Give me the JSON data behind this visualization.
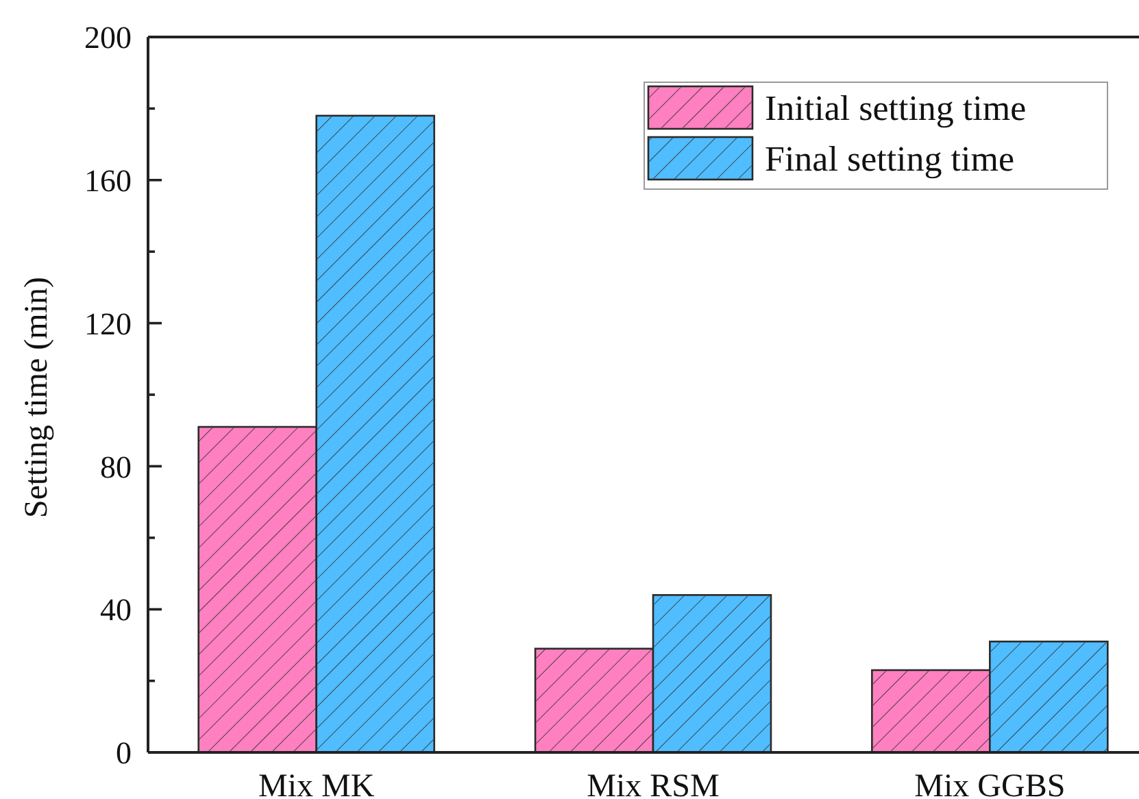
{
  "chart_data": {
    "type": "bar",
    "ylabel": "Setting time (min)",
    "categories": [
      "Mix MK",
      "Mix RSM",
      "Mix GGBS"
    ],
    "series": [
      {
        "name": "Initial setting time",
        "color": "#ff80c0",
        "values": [
          91,
          29,
          23
        ]
      },
      {
        "name": "Final setting time",
        "color": "#50bdff",
        "values": [
          178,
          44,
          31
        ]
      }
    ],
    "ylim": [
      0,
      200
    ],
    "yticks": [
      0,
      {
        "value": 20,
        "label": null
      },
      40,
      {
        "value": 60,
        "label": null
      },
      80,
      {
        "value": 100,
        "label": null
      },
      120,
      {
        "value": 140,
        "label": null
      },
      160,
      {
        "value": 180,
        "label": null
      },
      200
    ],
    "legend": "top right",
    "grid": false
  }
}
